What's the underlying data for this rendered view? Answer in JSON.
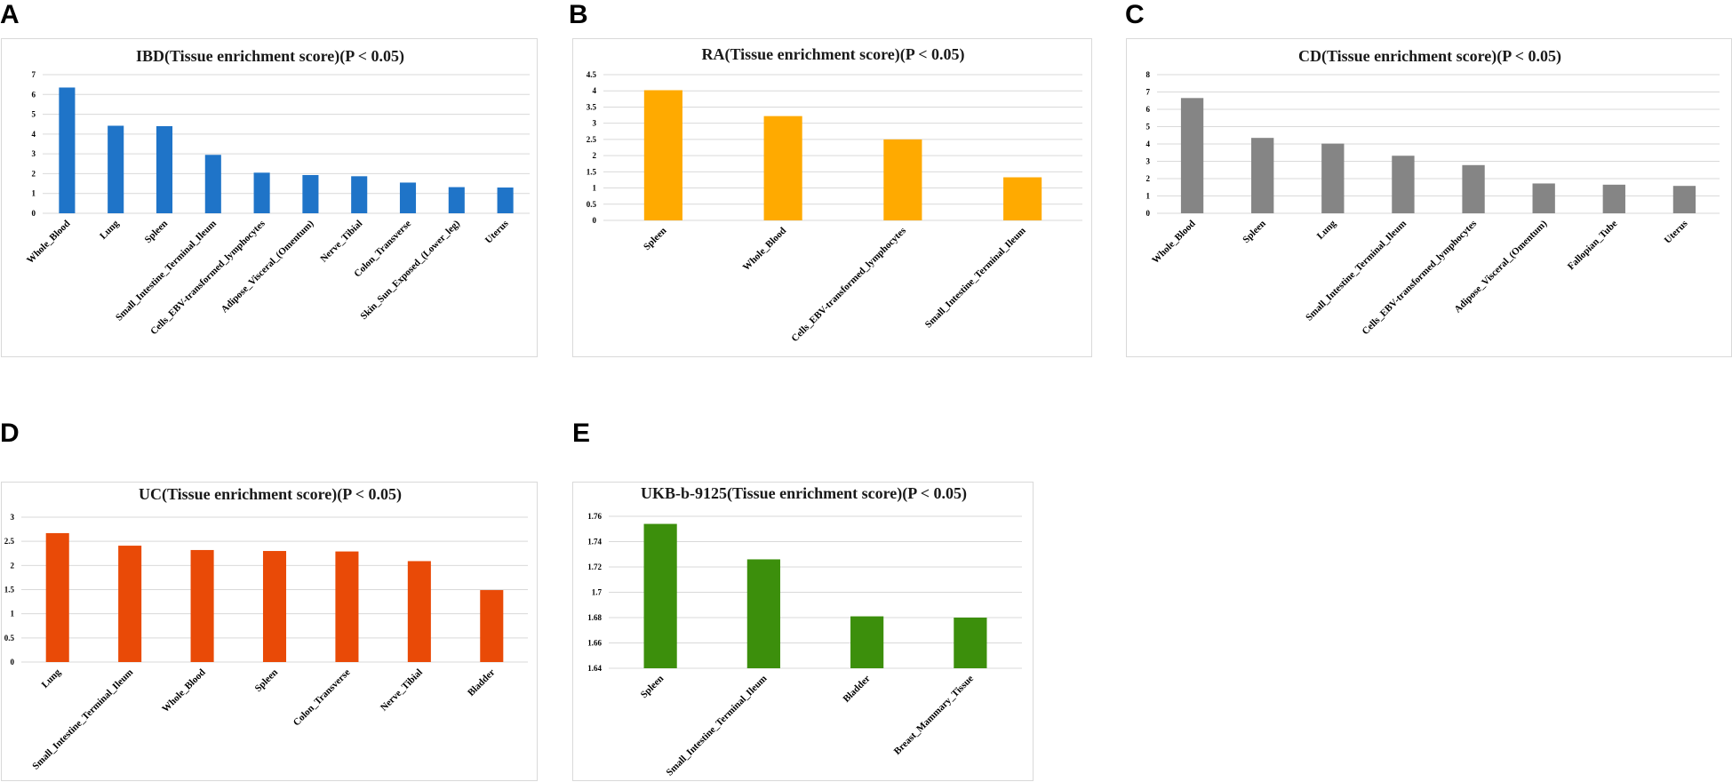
{
  "chart_data": [
    {
      "id": "A",
      "panel_label": "A",
      "type": "bar",
      "title": "IBD(Tissue enrichment score)(P < 0.05)",
      "color": "#1f74c8",
      "categories": [
        "Whole_Blood",
        "Lung",
        "Spleen",
        "Small_Intestine_Terminal_Ileum",
        "Cells_EBV-transformed_lymphocytes",
        "Adipose_Visceral_(Omentum)",
        "Nerve_Tibial",
        "Colon_Transverse",
        "Skin_Sun_Exposed_(Lower_leg)",
        "Uterus"
      ],
      "values": [
        6.35,
        4.42,
        4.4,
        2.95,
        2.05,
        1.93,
        1.87,
        1.55,
        1.32,
        1.3
      ],
      "ylim": [
        0,
        7
      ],
      "yticks": [
        "0",
        "1",
        "2",
        "3",
        "4",
        "5",
        "6",
        "7"
      ],
      "xlabel": "",
      "ylabel": ""
    },
    {
      "id": "B",
      "panel_label": "B",
      "type": "bar",
      "title": "RA(Tissue enrichment score)(P < 0.05)",
      "color": "#ffaa00",
      "categories": [
        "Spleen",
        "Whole_Blood",
        "Cells_EBV-transformed_lymphocytes",
        "Small_Intestine_Terminal_Ileum"
      ],
      "values": [
        4.02,
        3.22,
        2.5,
        1.33
      ],
      "ylim": [
        0,
        4.5
      ],
      "yticks": [
        "0",
        "0.5",
        "1",
        "1.5",
        "2",
        "2.5",
        "3",
        "3.5",
        "4",
        "4.5"
      ],
      "xlabel": "",
      "ylabel": ""
    },
    {
      "id": "C",
      "panel_label": "C",
      "type": "bar",
      "title": "CD(Tissue enrichment score)(P < 0.05)",
      "color": "#858585",
      "categories": [
        "Whole_Blood",
        "Spleen",
        "Lung",
        "Small_Intestine_Terminal_Ileum",
        "Cells_EBV-transformed_lymphocytes",
        "Adipose_Visceral_(Omentum)",
        "Fallopian_Tube",
        "Uterus"
      ],
      "values": [
        6.65,
        4.35,
        4.02,
        3.32,
        2.78,
        1.72,
        1.65,
        1.58
      ],
      "ylim": [
        0,
        8
      ],
      "yticks": [
        "0",
        "1",
        "2",
        "3",
        "4",
        "5",
        "6",
        "7",
        "8"
      ],
      "xlabel": "",
      "ylabel": ""
    },
    {
      "id": "D",
      "panel_label": "D",
      "type": "bar",
      "title": "UC(Tissue enrichment score)(P < 0.05)",
      "color": "#e94a07",
      "categories": [
        "Lung",
        "Small_Intestine_Terminal_Ileum",
        "Whole_Blood",
        "Spleen",
        "Colon_Transverse",
        "Nerve_Tibial",
        "Bladder"
      ],
      "values": [
        2.67,
        2.41,
        2.32,
        2.3,
        2.29,
        2.09,
        1.49
      ],
      "ylim": [
        0,
        3
      ],
      "yticks": [
        "0",
        "0.5",
        "1",
        "1.5",
        "2",
        "2.5",
        "3"
      ],
      "xlabel": "",
      "ylabel": ""
    },
    {
      "id": "E",
      "panel_label": "E",
      "type": "bar",
      "title": "UKB-b-9125(Tissue enrichment score)(P < 0.05)",
      "color": "#3c8f0c",
      "categories": [
        "Spleen",
        "Small_Intestine_Terminal_Ileum",
        "Bladder",
        "Breast_Mammary_Tissue"
      ],
      "values": [
        1.754,
        1.726,
        1.681,
        1.68
      ],
      "ylim": [
        1.64,
        1.76
      ],
      "yticks": [
        "1.64",
        "1.66",
        "1.68",
        "1.7",
        "1.72",
        "1.74",
        "1.76"
      ],
      "xlabel": "",
      "ylabel": ""
    }
  ]
}
